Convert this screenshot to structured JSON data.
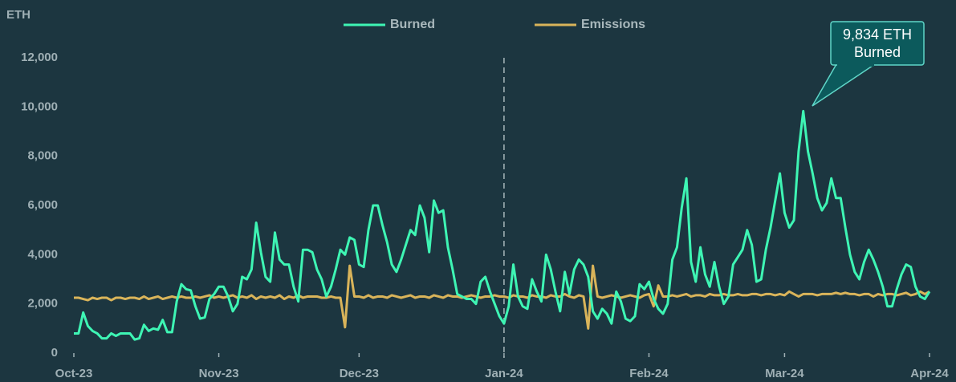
{
  "chart_data": {
    "type": "line",
    "y_label": "ETH",
    "annotation": {
      "lines": [
        "9,834 ETH",
        "Burned"
      ]
    },
    "vline_at": 92,
    "categories": [
      "Oct-23",
      null,
      null,
      null,
      null,
      null,
      null,
      null,
      null,
      null,
      null,
      null,
      null,
      null,
      null,
      null,
      null,
      null,
      null,
      null,
      null,
      null,
      null,
      null,
      null,
      null,
      null,
      null,
      null,
      null,
      null,
      "Nov-23",
      null,
      null,
      null,
      null,
      null,
      null,
      null,
      null,
      null,
      null,
      null,
      null,
      null,
      null,
      null,
      null,
      null,
      null,
      null,
      null,
      null,
      null,
      null,
      null,
      null,
      null,
      null,
      null,
      null,
      "Dec-23",
      null,
      null,
      null,
      null,
      null,
      null,
      null,
      null,
      null,
      null,
      null,
      null,
      null,
      null,
      null,
      null,
      null,
      null,
      null,
      null,
      null,
      null,
      null,
      null,
      null,
      null,
      null,
      null,
      null,
      null,
      "Jan-24",
      null,
      null,
      null,
      null,
      null,
      null,
      null,
      null,
      null,
      null,
      null,
      null,
      null,
      null,
      null,
      null,
      null,
      null,
      null,
      null,
      null,
      null,
      null,
      null,
      null,
      null,
      null,
      null,
      null,
      null,
      "Feb-24",
      null,
      null,
      null,
      null,
      null,
      null,
      null,
      null,
      null,
      null,
      null,
      null,
      null,
      null,
      null,
      null,
      null,
      null,
      null,
      null,
      null,
      null,
      null,
      null,
      null,
      null,
      null,
      null,
      "Mar-24",
      null,
      null,
      null,
      null,
      null,
      null,
      null,
      null,
      null,
      null,
      null,
      null,
      null,
      null,
      null,
      null,
      null,
      null,
      null,
      null,
      null,
      null,
      null,
      null,
      null,
      null,
      null,
      null,
      null,
      null,
      "Apr-24"
    ],
    "series": [
      {
        "name": "Burned",
        "color": "#3ef5b4",
        "values": [
          800,
          800,
          1650,
          1100,
          900,
          800,
          600,
          600,
          800,
          700,
          800,
          800,
          800,
          550,
          600,
          1150,
          900,
          1000,
          950,
          1350,
          850,
          850,
          2100,
          2800,
          2600,
          2550,
          1900,
          1400,
          1450,
          2200,
          2400,
          2700,
          2700,
          2300,
          1700,
          2000,
          3100,
          3000,
          3400,
          5300,
          4100,
          3100,
          2900,
          4900,
          3800,
          3600,
          3600,
          2700,
          2100,
          4200,
          4200,
          4100,
          3400,
          3000,
          2300,
          2700,
          3400,
          4200,
          4000,
          4700,
          4600,
          3600,
          3500,
          5000,
          6000,
          6000,
          5200,
          4500,
          3600,
          3300,
          3800,
          4400,
          5000,
          4800,
          6000,
          5500,
          4100,
          6200,
          5700,
          5800,
          4300,
          3400,
          2400,
          2300,
          2200,
          2200,
          2000,
          2900,
          3100,
          2500,
          2000,
          1500,
          1200,
          1900,
          3600,
          2300,
          1900,
          1800,
          3000,
          2500,
          2100,
          4000,
          3400,
          2500,
          1700,
          3300,
          2400,
          3400,
          3800,
          3600,
          3100,
          1700,
          1400,
          1800,
          1600,
          1200,
          2500,
          2100,
          1400,
          1300,
          1500,
          2800,
          2600,
          2900,
          2200,
          1800,
          1600,
          2000,
          3800,
          4300,
          5900,
          7100,
          3700,
          2900,
          4300,
          3200,
          2700,
          3700,
          2700,
          2000,
          2300,
          3600,
          3900,
          4200,
          5000,
          4400,
          2900,
          3000,
          4200,
          5100,
          6200,
          7300,
          5700,
          5100,
          5400,
          8200,
          9834,
          8200,
          7300,
          6300,
          5800,
          6100,
          7100,
          6300,
          6300,
          5100,
          4000,
          3300,
          3000,
          3700,
          4200,
          3800,
          3300,
          2700,
          1900,
          1900,
          2600,
          3200,
          3600,
          3500,
          2700,
          2300,
          2200,
          2500
        ]
      },
      {
        "name": "Emissions",
        "color": "#d9b45a",
        "values": [
          2250,
          2250,
          2200,
          2150,
          2250,
          2200,
          2250,
          2250,
          2150,
          2250,
          2250,
          2200,
          2250,
          2250,
          2200,
          2300,
          2200,
          2250,
          2300,
          2200,
          2250,
          2300,
          2250,
          2300,
          2250,
          2250,
          2300,
          2250,
          2300,
          2350,
          2250,
          2300,
          2250,
          2300,
          2350,
          2250,
          2300,
          2250,
          2350,
          2200,
          2300,
          2250,
          2300,
          2250,
          2350,
          2200,
          2300,
          2250,
          2350,
          2250,
          2300,
          2300,
          2300,
          2250,
          2250,
          2300,
          2250,
          2250,
          1050,
          3550,
          2300,
          2300,
          2250,
          2350,
          2250,
          2300,
          2300,
          2250,
          2350,
          2300,
          2250,
          2300,
          2350,
          2250,
          2300,
          2300,
          2250,
          2350,
          2300,
          2250,
          2350,
          2300,
          2300,
          2250,
          2300,
          2350,
          2300,
          2250,
          2300,
          2300,
          2350,
          2300,
          2300,
          2250,
          2350,
          2300,
          2300,
          2250,
          2350,
          2300,
          2300,
          2250,
          2350,
          2300,
          2300,
          2400,
          2300,
          2250,
          2350,
          2300,
          1000,
          3550,
          2300,
          2250,
          2300,
          2350,
          2300,
          2250,
          2300,
          2350,
          2300,
          2250,
          2350,
          2400,
          1900,
          2750,
          2300,
          2300,
          2350,
          2300,
          2350,
          2400,
          2300,
          2350,
          2350,
          2300,
          2400,
          2350,
          2350,
          2400,
          2350,
          2350,
          2400,
          2350,
          2350,
          2400,
          2400,
          2350,
          2400,
          2400,
          2350,
          2400,
          2350,
          2500,
          2400,
          2300,
          2400,
          2400,
          2400,
          2350,
          2400,
          2400,
          2400,
          2450,
          2400,
          2450,
          2400,
          2400,
          2350,
          2400,
          2400,
          2300,
          2400,
          2350,
          2400,
          2400,
          2350,
          2400,
          2450,
          2350,
          2400,
          2500,
          2400,
          2500
        ]
      }
    ],
    "ylim": [
      0,
      12000
    ],
    "yticks": [
      0,
      {
        "value": 2000,
        "label": "2,000"
      },
      {
        "value": 4000,
        "label": "4,000"
      },
      {
        "value": 6000,
        "label": "6,000"
      },
      {
        "value": 8000,
        "label": "8,000"
      },
      {
        "value": 10000,
        "label": "10,000"
      },
      {
        "value": 12000,
        "label": "12,000"
      }
    ],
    "grid": false,
    "legend": "top"
  }
}
